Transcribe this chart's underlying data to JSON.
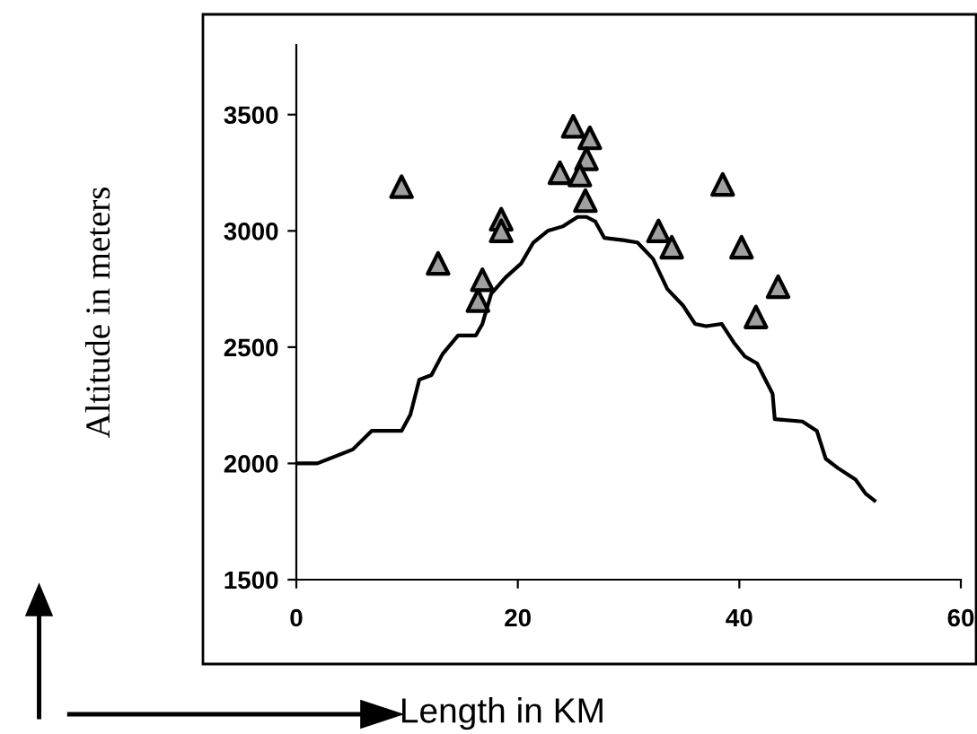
{
  "chart_data": {
    "type": "line",
    "xlabel": "Length in KM",
    "ylabel": "Altitude in meters",
    "xlim": [
      0,
      60
    ],
    "ylim": [
      1500,
      3800
    ],
    "xticks": [
      0,
      20,
      40,
      60
    ],
    "yticks": [
      1500,
      2000,
      2500,
      3000,
      3500
    ],
    "grid": false,
    "legend": false,
    "series": [
      {
        "color": "#000000",
        "marker": "none",
        "line_style": "solid",
        "x": [
          0,
          1.9,
          5.1,
          6.8,
          9.5,
          10.3,
          11.1,
          12.2,
          13.2,
          14.6,
          16.2,
          16.8,
          17.6,
          18.9,
          20.3,
          21.4,
          22.7,
          24.1,
          25.4,
          26.2,
          27.0,
          27.8,
          29.5,
          30.8,
          32.2,
          33.5,
          34.9,
          36.0,
          37.0,
          38.4,
          39.5,
          40.5,
          41.6,
          43.0,
          43.2,
          45.7,
          47.0,
          47.8,
          48.9,
          50.5,
          51.4,
          52.2
        ],
        "values": [
          2000,
          2000,
          2060,
          2140,
          2140,
          2210,
          2360,
          2380,
          2470,
          2550,
          2550,
          2600,
          2730,
          2800,
          2860,
          2950,
          3000,
          3020,
          3060,
          3060,
          3040,
          2970,
          2960,
          2950,
          2880,
          2750,
          2680,
          2600,
          2590,
          2600,
          2520,
          2460,
          2430,
          2300,
          2190,
          2180,
          2140,
          2020,
          1980,
          1930,
          1870,
          1840
        ]
      },
      {
        "type": "scatter",
        "color": "#a0a0a0",
        "marker": "triangle",
        "x": [
          9.5,
          12.8,
          16.8,
          16.4,
          18.5,
          18.5,
          25.0,
          23.8,
          26.5,
          26.2,
          25.6,
          26.1,
          32.7,
          33.9,
          38.5,
          40.2,
          41.5,
          43.5
        ],
        "values": [
          3190,
          2860,
          2790,
          2700,
          3050,
          3000,
          3450,
          3250,
          3400,
          3310,
          3240,
          3130,
          3000,
          2930,
          3200,
          2930,
          2630,
          2760
        ]
      }
    ]
  }
}
